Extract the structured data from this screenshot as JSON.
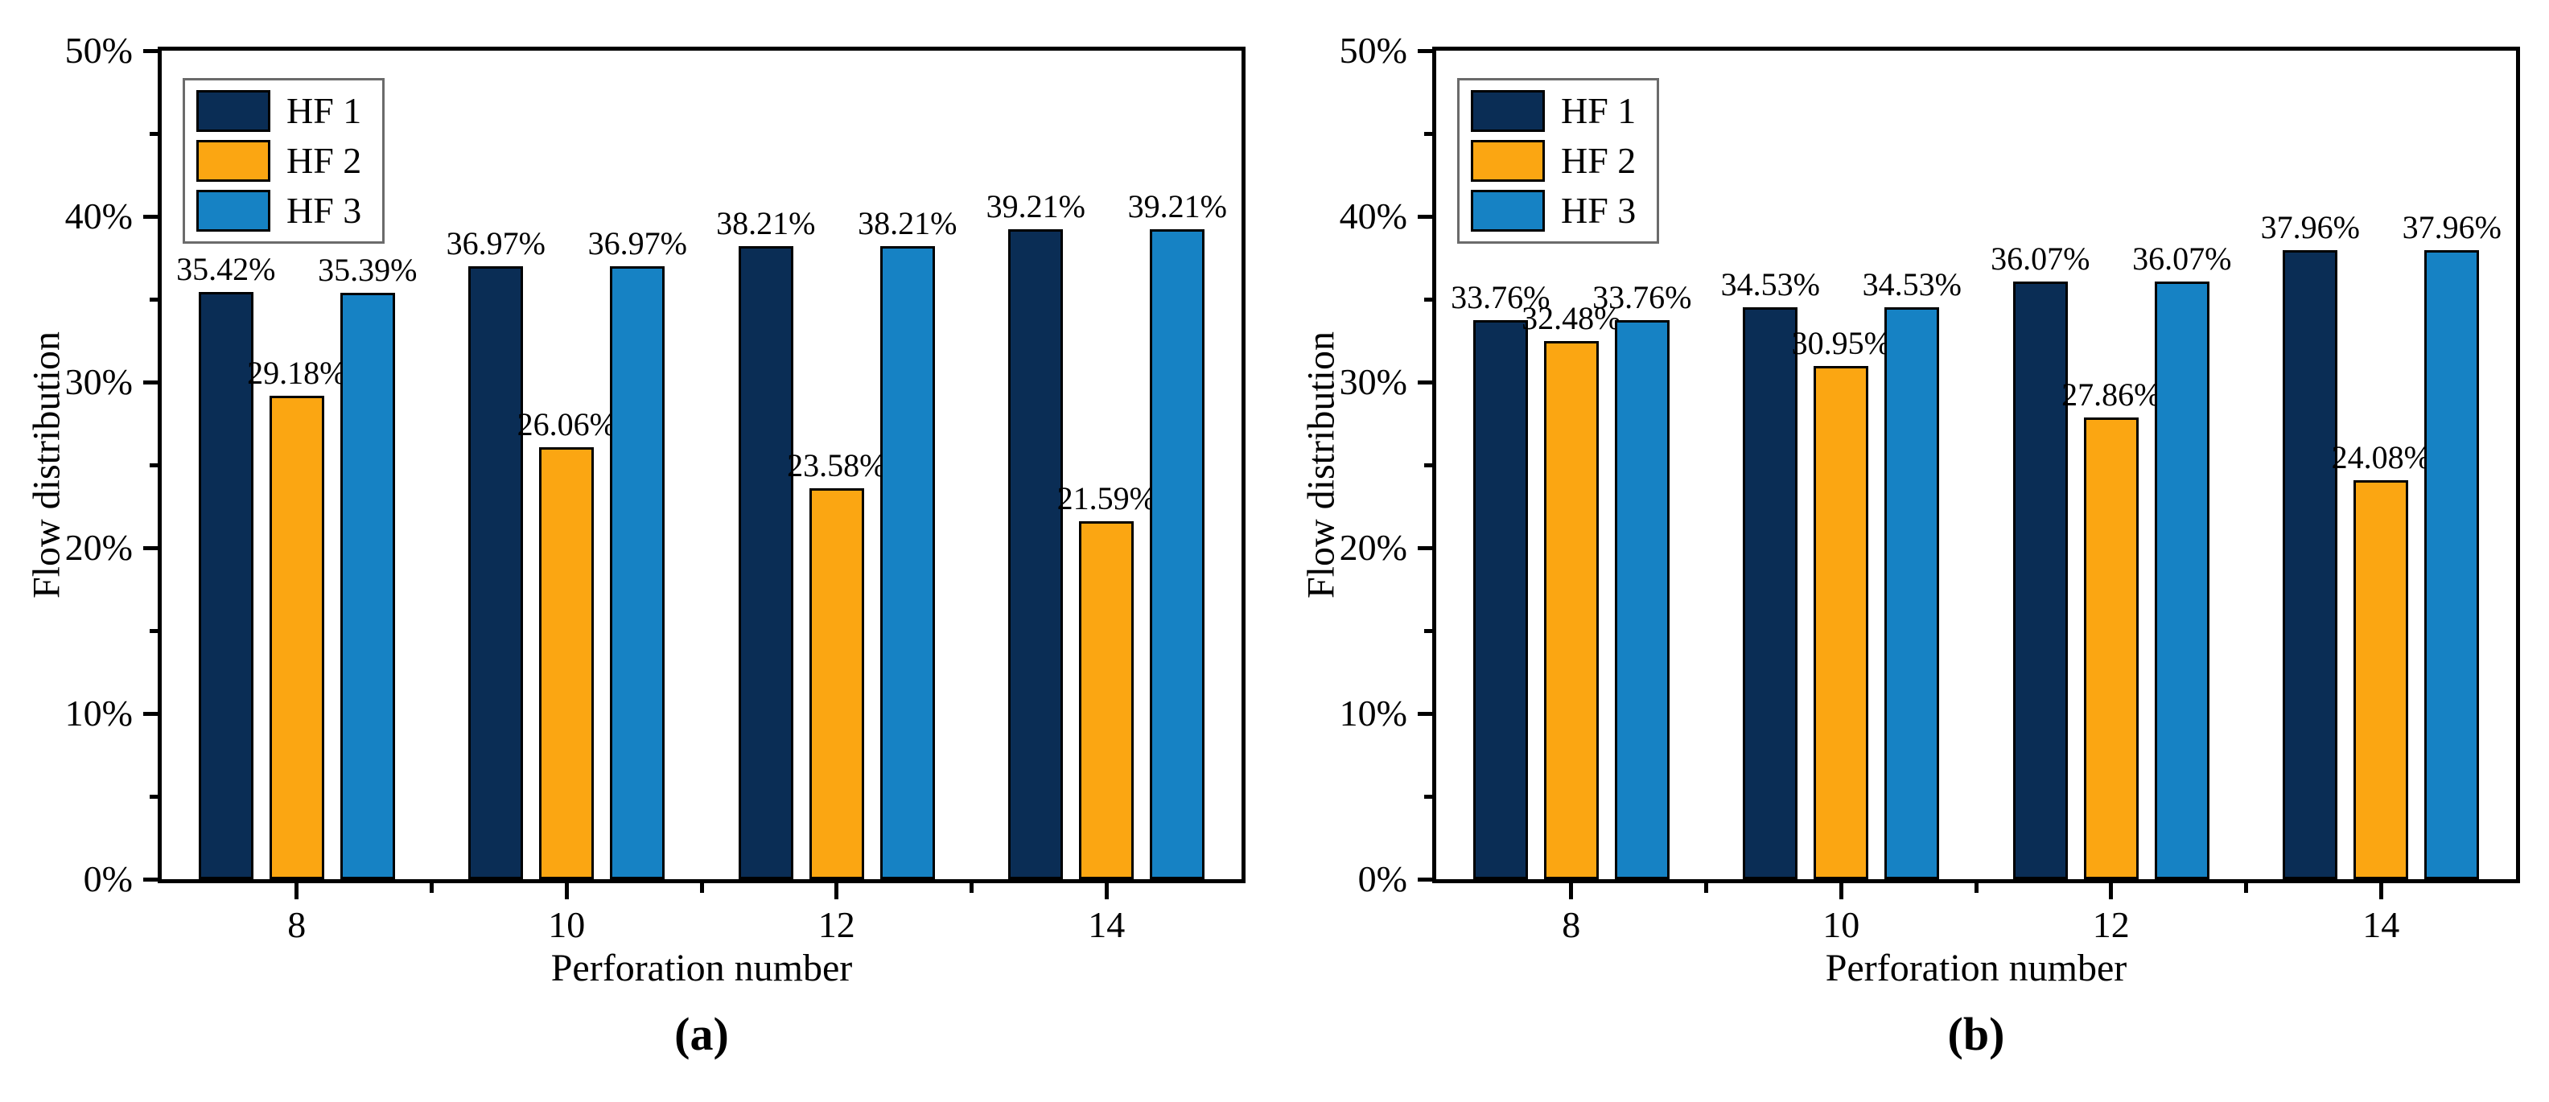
{
  "chart_data": [
    {
      "type": "bar",
      "title": "(a)",
      "xlabel": "Perforation number",
      "ylabel": "Flow distribution",
      "categories": [
        "8",
        "10",
        "12",
        "14"
      ],
      "series": [
        {
          "name": "HF 1",
          "color": "#0A2D55",
          "values": [
            35.42,
            36.97,
            38.21,
            39.21
          ],
          "labels": [
            "35.42%",
            "36.97%",
            "38.21%",
            "39.21%"
          ]
        },
        {
          "name": "HF 2",
          "color": "#FBA612",
          "values": [
            29.18,
            26.06,
            23.58,
            21.59
          ],
          "labels": [
            "29.18%",
            "26.06%",
            "23.58%",
            "21.59%"
          ]
        },
        {
          "name": "HF 3",
          "color": "#1682C4",
          "values": [
            35.39,
            36.97,
            38.21,
            39.21
          ],
          "labels": [
            "35.39%",
            "36.97%",
            "38.21%",
            "39.21%"
          ]
        }
      ],
      "ylim": [
        0,
        50
      ],
      "yticks": [
        0,
        10,
        20,
        30,
        40,
        50
      ],
      "ytick_labels": [
        "0%",
        "10%",
        "20%",
        "30%",
        "40%",
        "50%"
      ],
      "yticks_minor": [
        5,
        15,
        25,
        35,
        45
      ],
      "legend_position": "top-left",
      "grid": false
    },
    {
      "type": "bar",
      "title": "(b)",
      "xlabel": "Perforation number",
      "ylabel": "Flow distribution",
      "categories": [
        "8",
        "10",
        "12",
        "14"
      ],
      "series": [
        {
          "name": "HF 1",
          "color": "#0A2D55",
          "values": [
            33.76,
            34.53,
            36.07,
            37.96
          ],
          "labels": [
            "33.76%",
            "34.53%",
            "36.07%",
            "37.96%"
          ]
        },
        {
          "name": "HF 2",
          "color": "#FBA612",
          "values": [
            32.48,
            30.95,
            27.86,
            24.08
          ],
          "labels": [
            "32.48%",
            "30.95%",
            "27.86%",
            "24.08%"
          ]
        },
        {
          "name": "HF 3",
          "color": "#1682C4",
          "values": [
            33.76,
            34.53,
            36.07,
            37.96
          ],
          "labels": [
            "33.76%",
            "34.53%",
            "36.07%",
            "37.96%"
          ]
        }
      ],
      "ylim": [
        0,
        50
      ],
      "yticks": [
        0,
        10,
        20,
        30,
        40,
        50
      ],
      "ytick_labels": [
        "0%",
        "10%",
        "20%",
        "30%",
        "40%",
        "50%"
      ],
      "yticks_minor": [
        5,
        15,
        25,
        35,
        45
      ],
      "legend_position": "top-left",
      "grid": false
    }
  ]
}
